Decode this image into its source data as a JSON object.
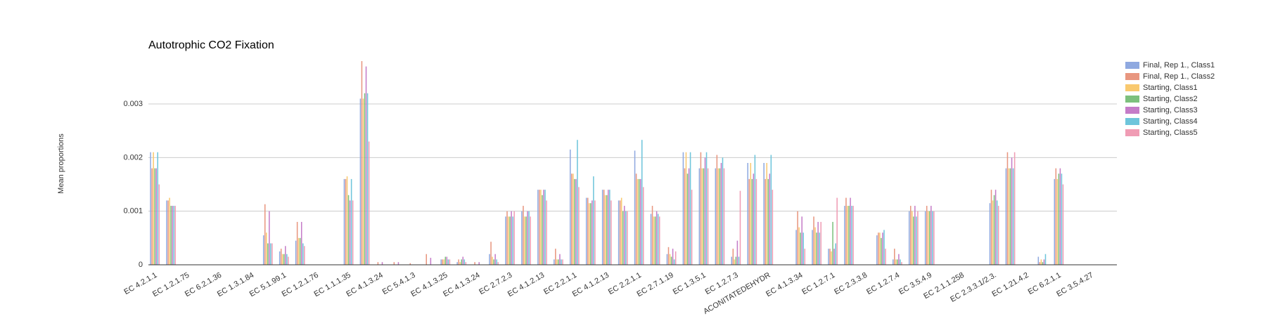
{
  "chart_data": {
    "type": "bar",
    "title": "Autotrophic CO2 Fixation",
    "y_label": "Mean proportions",
    "categories": [
      "EC 4.2.1.1",
      null,
      "EC 1.2.1.75",
      null,
      "EC 6.2.1.36",
      null,
      "EC 1.3.1.84",
      null,
      "EC 5.1.99.1",
      null,
      "EC 1.2.1.76",
      null,
      "EC 1.1.1.35",
      null,
      "EC 4.1.3.24",
      null,
      "EC 5.4.1.3",
      null,
      "EC 4.1.3.25",
      null,
      "EC 4.1.3.24",
      null,
      "EC 2.7.2.3",
      null,
      "EC 4.1.2.13",
      null,
      "EC 2.2.1.1",
      null,
      "EC 4.1.2.13",
      null,
      "EC 2.2.1.1",
      null,
      "EC 2.7.1.19",
      null,
      "EC 1.3.5.1",
      null,
      "EC 1.2.7.3",
      null,
      "ACONITATEDEHYDR",
      null,
      "EC 4.1.3.34",
      null,
      "EC 1.2.7.1",
      null,
      "EC 2.3.3.8",
      null,
      "EC 1.2.7.4",
      null,
      "EC 3.5.4.9",
      null,
      "EC 2.1.1.258",
      null,
      "EC 2.3.3.1/2.3.",
      null,
      "EC 1.21.4.2",
      null,
      "EC 6.2.1.1",
      null,
      "EC 3.5.4.27",
      null
    ],
    "series": [
      {
        "name": "Final, Rep 1., Class1",
        "color": "#8fa9e0",
        "values": [
          0.0021,
          0.0012,
          0,
          0,
          0,
          0,
          0,
          0.00055,
          0.00025,
          0.00045,
          0,
          0,
          0.0016,
          0.0031,
          0,
          0,
          0,
          0,
          0.0001,
          5e-05,
          0,
          0.0002,
          0.0009,
          0.001,
          0.0014,
          0.0001,
          0.00215,
          0.00125,
          0.0014,
          0.0012,
          0.00213,
          0.00095,
          0.0002,
          0.0021,
          0.0018,
          0.0018,
          0.00015,
          0.0019,
          0.0019,
          0,
          0.00065,
          0.00065,
          0.0003,
          0.0011,
          0,
          0.00055,
          0.0001,
          0.001,
          0.001,
          0,
          0,
          0,
          0.00115,
          0.0018,
          0,
          0.00015,
          0.0016,
          0,
          0,
          0
        ]
      },
      {
        "name": "Final, Rep 1., Class2",
        "color": "#e8967f",
        "values": [
          0.0018,
          0.0012,
          0,
          0,
          0,
          0,
          0,
          0.00113,
          0.0003,
          0.0008,
          0,
          0,
          0.0016,
          0.0038,
          5e-05,
          5e-05,
          3e-05,
          0.0002,
          0.0001,
          0.0001,
          5e-05,
          0.00043,
          0.001,
          0.0011,
          0.0014,
          0.0003,
          0.0017,
          0.00125,
          0.0014,
          0.0012,
          0.0017,
          0.0011,
          0.00033,
          0.0018,
          0.0021,
          0.00205,
          0.0003,
          0.0016,
          0.0016,
          0,
          0.001,
          0.0009,
          0.0003,
          0.00125,
          0,
          0.0006,
          0.0003,
          0.0011,
          0.0011,
          0,
          0,
          0,
          0.0014,
          0.0021,
          0,
          5e-05,
          0.0018,
          0,
          0,
          0
        ]
      },
      {
        "name": "Starting, Class1",
        "color": "#f9c96f",
        "values": [
          0.0021,
          0.00125,
          0,
          0,
          0,
          0,
          0,
          0.0006,
          0.0002,
          0.0005,
          0,
          0,
          0.00165,
          0.0031,
          0,
          0,
          0,
          0,
          0.0001,
          5e-05,
          0,
          0.00015,
          0.0009,
          0.0009,
          0.0014,
          0.0001,
          0.0017,
          0.00115,
          0.0013,
          0.00125,
          0.0016,
          0.0009,
          0.0002,
          0.0021,
          0.0018,
          0.0018,
          0.0001,
          0.0019,
          0.0019,
          0,
          0.0007,
          0.0007,
          0.00025,
          0.0011,
          0,
          0.0006,
          0.0001,
          0.001,
          0.001,
          0,
          0,
          0,
          0.0012,
          0.0018,
          0,
          0.0001,
          0.0016,
          0,
          0,
          0
        ]
      },
      {
        "name": "Starting, Class2",
        "color": "#7dc07d",
        "values": [
          0.0018,
          0.0011,
          0,
          0,
          0,
          0,
          0,
          0.0004,
          0.0002,
          0.0005,
          0,
          0,
          0.0013,
          0.0032,
          0,
          0,
          0,
          0,
          0.00015,
          0.0001,
          0,
          0.0001,
          0.0009,
          0.0009,
          0.0013,
          0.0001,
          0.0016,
          0.00115,
          0.0013,
          0.001,
          0.0016,
          0.0009,
          0.00015,
          0.0017,
          0.0018,
          0.0018,
          0.00015,
          0.0016,
          0.0016,
          0,
          0.0006,
          0.0006,
          0.0008,
          0.0011,
          0,
          0.0005,
          0.0001,
          0.0009,
          0.001,
          0,
          0,
          0,
          0.0013,
          0.0018,
          0,
          5e-05,
          0.0017,
          0,
          0,
          0
        ]
      },
      {
        "name": "Starting, Class3",
        "color": "#c57cc8",
        "values": [
          0.0018,
          0.0011,
          0,
          0,
          0,
          0,
          0,
          0.001,
          0.00035,
          0.0008,
          0,
          0,
          0.0012,
          0.0037,
          5e-05,
          5e-05,
          0,
          0.00013,
          0.00015,
          0.00015,
          5e-05,
          0.0002,
          0.001,
          0.001,
          0.0014,
          0.0002,
          0.0016,
          0.0012,
          0.0014,
          0.0011,
          0.0016,
          0.001,
          0.0003,
          0.0018,
          0.002,
          0.0019,
          0.00045,
          0.0017,
          0.0017,
          0,
          0.0009,
          0.0008,
          0.0003,
          0.00125,
          0,
          0.0006,
          0.0002,
          0.0011,
          0.0011,
          0,
          0,
          0,
          0.0014,
          0.002,
          0,
          0.0001,
          0.0018,
          0,
          0,
          0
        ]
      },
      {
        "name": "Starting, Class4",
        "color": "#6ec5db",
        "values": [
          0.0021,
          0.0011,
          0,
          0,
          0,
          0,
          0,
          0.0004,
          0.0002,
          0.0004,
          0,
          0,
          0.0016,
          0.0032,
          0,
          0,
          0,
          0,
          0.0001,
          0.0001,
          0,
          0.0001,
          0.0009,
          0.001,
          0.0014,
          0.0001,
          0.00233,
          0.00165,
          0.0014,
          0.001,
          0.00233,
          0.00095,
          0.0001,
          0.0021,
          0.0021,
          0.002,
          0.00015,
          0.00205,
          0.00205,
          0,
          0.0006,
          0.0006,
          0.0004,
          0.0011,
          0,
          0.00065,
          0.0001,
          0.0009,
          0.001,
          0,
          0,
          0,
          0.0012,
          0.0018,
          0,
          0.0002,
          0.0017,
          0,
          0,
          0
        ]
      },
      {
        "name": "Starting, Class5",
        "color": "#f09cb4",
        "values": [
          0.0015,
          0.0011,
          0,
          0,
          0,
          0,
          0,
          0.0004,
          0.00015,
          0.00035,
          0,
          0,
          0.0012,
          0.0023,
          0,
          0,
          0,
          0,
          0.0001,
          5e-05,
          0,
          5e-05,
          0.001,
          0.0009,
          0.0012,
          0.0001,
          0.00145,
          0.0012,
          0.0012,
          0.001,
          0.00145,
          0.0009,
          0.00025,
          0.0014,
          0.0018,
          0.0018,
          0.00138,
          0.0016,
          0.0014,
          0,
          0.0003,
          0.0008,
          0.00125,
          0.0011,
          0,
          0.0003,
          5e-05,
          0.001,
          0.001,
          0,
          0,
          0,
          0.0011,
          0.0021,
          0,
          0,
          0.0015,
          0,
          0,
          0
        ]
      }
    ],
    "ylim": [
      0,
      0.0038
    ],
    "yticks": [
      0,
      0.001,
      0.002,
      0.003
    ],
    "grid": true,
    "legend": "right"
  }
}
